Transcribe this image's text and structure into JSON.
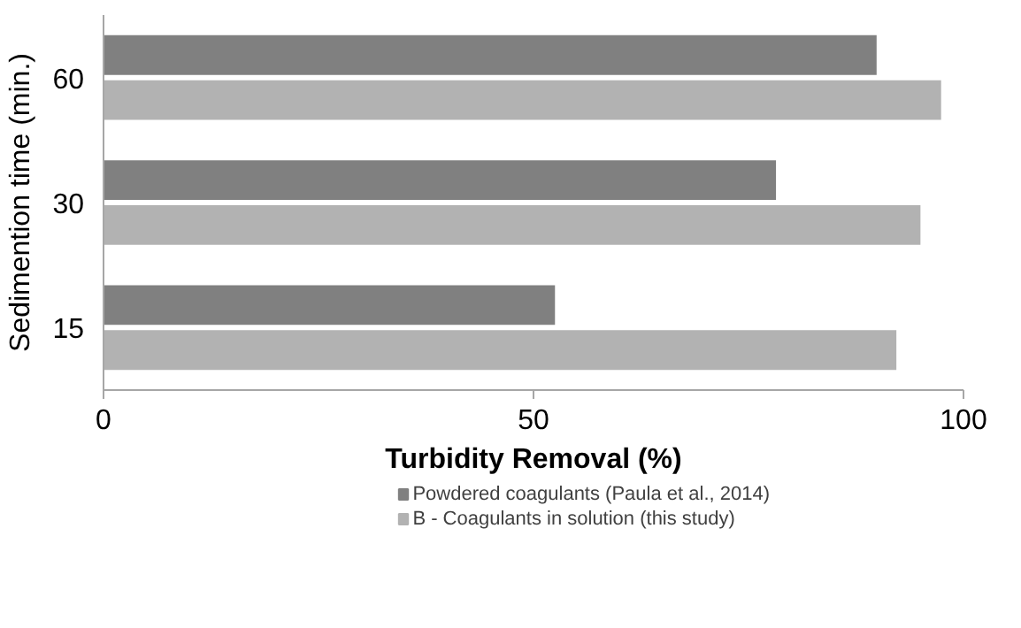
{
  "chart_data": {
    "type": "bar",
    "orientation": "horizontal",
    "xlabel": "Turbidity Removal (%)",
    "ylabel": "Sedimention time (min.)",
    "categories": [
      "60",
      "30",
      "15"
    ],
    "series": [
      {
        "name": "Powdered coagulants (Paula et al., 2014)",
        "color": "#808080",
        "values": [
          90,
          78.3,
          52.6
        ]
      },
      {
        "name": "B - Coagulants in solution (this study)",
        "color": "#b2b2b2",
        "values": [
          97.5,
          95.1,
          92.3
        ]
      }
    ],
    "xlim": [
      0,
      100
    ],
    "xticks": [
      0,
      50,
      100
    ],
    "legend": "bottom"
  }
}
